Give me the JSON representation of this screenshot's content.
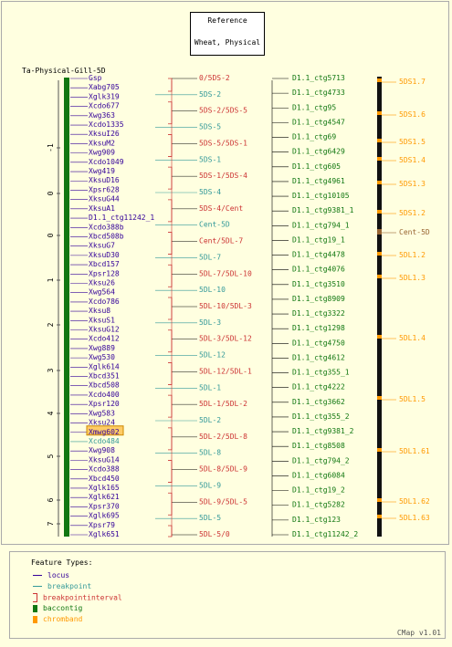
{
  "reference_box": {
    "line1": "Reference",
    "line2": "Wheat, Physical"
  },
  "map_title": "Ta-Physical-Gill-5D",
  "colors": {
    "locus": "#330099",
    "breakpoint": "#339999",
    "interval": "#cc3333",
    "contig": "#117711",
    "chromband": "#ff9900",
    "line": "#000000"
  },
  "axis_ticks": [
    "-1",
    "0",
    "0",
    "1",
    "2",
    "3",
    "4",
    "5",
    "6",
    "7"
  ],
  "loci": [
    {
      "label": "Gsp",
      "type": "locus"
    },
    {
      "label": "Xabg705",
      "type": "locus"
    },
    {
      "label": "Xglk319",
      "type": "locus"
    },
    {
      "label": "Xcdo677",
      "type": "locus"
    },
    {
      "label": "Xwg363",
      "type": "locus"
    },
    {
      "label": "Xcdo1335",
      "type": "locus"
    },
    {
      "label": "XksuI26",
      "type": "locus"
    },
    {
      "label": "XksuM2",
      "type": "locus"
    },
    {
      "label": "Xwg909",
      "type": "locus"
    },
    {
      "label": "Xcdo1049",
      "type": "locus"
    },
    {
      "label": "Xwg419",
      "type": "locus"
    },
    {
      "label": "XksuD16",
      "type": "locus"
    },
    {
      "label": "Xpsr628",
      "type": "locus"
    },
    {
      "label": "XksuG44",
      "type": "locus"
    },
    {
      "label": "XksuA1",
      "type": "locus"
    },
    {
      "label": "D1.1_ctg11242_1",
      "type": "locus"
    },
    {
      "label": "Xcdo388b",
      "type": "locus"
    },
    {
      "label": "Xbcd508b",
      "type": "locus"
    },
    {
      "label": "XksuG7",
      "type": "locus"
    },
    {
      "label": "XksuD30",
      "type": "locus"
    },
    {
      "label": "Xbcd157",
      "type": "locus"
    },
    {
      "label": "Xpsr128",
      "type": "locus"
    },
    {
      "label": "Xksu26",
      "type": "locus"
    },
    {
      "label": "Xwg564",
      "type": "locus"
    },
    {
      "label": "Xcdo786",
      "type": "locus"
    },
    {
      "label": "Xksu8",
      "type": "locus"
    },
    {
      "label": "XksuS1",
      "type": "locus"
    },
    {
      "label": "XksuG12",
      "type": "locus"
    },
    {
      "label": "Xcdo412",
      "type": "locus"
    },
    {
      "label": "Xwg889",
      "type": "locus"
    },
    {
      "label": "Xwg530",
      "type": "locus"
    },
    {
      "label": "Xglk614",
      "type": "locus"
    },
    {
      "label": "Xbcd351",
      "type": "locus"
    },
    {
      "label": "Xbcd508",
      "type": "locus"
    },
    {
      "label": "Xcdo400",
      "type": "locus"
    },
    {
      "label": "Xpsr120",
      "type": "locus"
    },
    {
      "label": "Xwg583",
      "type": "locus"
    },
    {
      "label": "Xksu24",
      "type": "locus"
    },
    {
      "label": "Xmwg602",
      "type": "highlight"
    },
    {
      "label": "Xcdo484",
      "type": "breakpoint"
    },
    {
      "label": "Xwg908",
      "type": "locus"
    },
    {
      "label": "XksuG14",
      "type": "locus"
    },
    {
      "label": "Xcdo388",
      "type": "locus"
    },
    {
      "label": "Xbcd450",
      "type": "locus"
    },
    {
      "label": "Xglk165",
      "type": "locus"
    },
    {
      "label": "Xglk621",
      "type": "locus"
    },
    {
      "label": "Xpsr370",
      "type": "locus"
    },
    {
      "label": "Xglk695",
      "type": "locus"
    },
    {
      "label": "Xpsr79",
      "type": "locus"
    },
    {
      "label": "Xglk651",
      "type": "locus"
    }
  ],
  "intervals": [
    {
      "label": "0/5DS-2",
      "type": "interval"
    },
    {
      "label": "5DS-2",
      "type": "breakpoint"
    },
    {
      "label": "5DS-2/5DS-5",
      "type": "interval"
    },
    {
      "label": "5DS-5",
      "type": "breakpoint"
    },
    {
      "label": "5DS-5/5DS-1",
      "type": "interval"
    },
    {
      "label": "5DS-1",
      "type": "breakpoint"
    },
    {
      "label": "5DS-1/5DS-4",
      "type": "interval"
    },
    {
      "label": "5DS-4",
      "type": "breakpoint"
    },
    {
      "label": "5DS-4/Cent",
      "type": "interval"
    },
    {
      "label": "Cent-5D",
      "type": "breakpoint"
    },
    {
      "label": "Cent/5DL-7",
      "type": "interval"
    },
    {
      "label": "5DL-7",
      "type": "breakpoint"
    },
    {
      "label": "5DL-7/5DL-10",
      "type": "interval"
    },
    {
      "label": "5DL-10",
      "type": "breakpoint"
    },
    {
      "label": "5DL-10/5DL-3",
      "type": "interval"
    },
    {
      "label": "5DL-3",
      "type": "breakpoint"
    },
    {
      "label": "5DL-3/5DL-12",
      "type": "interval"
    },
    {
      "label": "5DL-12",
      "type": "breakpoint"
    },
    {
      "label": "5DL-12/5DL-1",
      "type": "interval"
    },
    {
      "label": "5DL-1",
      "type": "breakpoint"
    },
    {
      "label": "5DL-1/5DL-2",
      "type": "interval"
    },
    {
      "label": "5DL-2",
      "type": "breakpoint"
    },
    {
      "label": "5DL-2/5DL-8",
      "type": "interval"
    },
    {
      "label": "5DL-8",
      "type": "breakpoint"
    },
    {
      "label": "5DL-8/5DL-9",
      "type": "interval"
    },
    {
      "label": "5DL-9",
      "type": "breakpoint"
    },
    {
      "label": "5DL-9/5DL-5",
      "type": "interval"
    },
    {
      "label": "5DL-5",
      "type": "breakpoint"
    },
    {
      "label": "5DL-5/0",
      "type": "interval"
    }
  ],
  "contigs": [
    "D1.1_ctg5713",
    "D1.1_ctg4733",
    "D1.1_ctg95",
    "D1.1_ctg4547",
    "D1.1_ctg69",
    "D1.1_ctg6429",
    "D1.1_ctg605",
    "D1.1_ctg4961",
    "D1.1_ctg10105",
    "D1.1_ctg9381_1",
    "D1.1_ctg794_1",
    "D1.1_ctg19_1",
    "D1.1_ctg4478",
    "D1.1_ctg4076",
    "D1.1_ctg3510",
    "D1.1_ctg8909",
    "D1.1_ctg3322",
    "D1.1_ctg1298",
    "D1.1_ctg4750",
    "D1.1_ctg4612",
    "D1.1_ctg355_1",
    "D1.1_ctg4222",
    "D1.1_ctg3662",
    "D1.1_ctg355_2",
    "D1.1_ctg9381_2",
    "D1.1_ctg8508",
    "D1.1_ctg794_2",
    "D1.1_ctg6084",
    "D1.1_ctg19_2",
    "D1.1_ctg5282",
    "D1.1_ctg123",
    "D1.1_ctg11242_2"
  ],
  "chrombands": [
    {
      "label": "5DS1.7",
      "type": "band"
    },
    {
      "label": "5DS1.6",
      "type": "band"
    },
    {
      "label": "5DS1.5",
      "type": "band"
    },
    {
      "label": "5DS1.4",
      "type": "band"
    },
    {
      "label": "5DS1.3",
      "type": "band"
    },
    {
      "label": "5DS1.2",
      "type": "band"
    },
    {
      "label": "Cent-5D",
      "type": "cent"
    },
    {
      "label": "5DL1.2",
      "type": "band"
    },
    {
      "label": "5DL1.3",
      "type": "band"
    },
    {
      "label": "5DL1.4",
      "type": "band"
    },
    {
      "label": "5DL1.5",
      "type": "band"
    },
    {
      "label": "5DL1.61",
      "type": "band"
    },
    {
      "label": "5DL1.62",
      "type": "band"
    },
    {
      "label": "5DL1.63",
      "type": "band"
    }
  ],
  "legend": {
    "title": "Feature Types:",
    "items": [
      {
        "label": "locus",
        "type": "locus"
      },
      {
        "label": "breakpoint",
        "type": "breakpoint"
      },
      {
        "label": "breakpointinterval",
        "type": "interval"
      },
      {
        "label": "baccontig",
        "type": "contig"
      },
      {
        "label": "chromband",
        "type": "chromband"
      }
    ]
  },
  "footer": "CMap v1.01"
}
